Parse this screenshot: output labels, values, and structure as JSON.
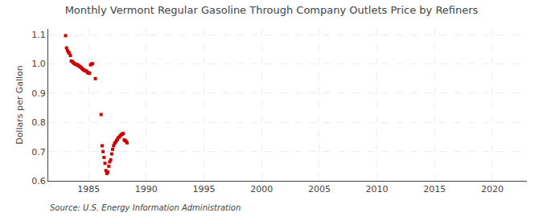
{
  "chart_data": {
    "type": "scatter",
    "title": "Monthly Vermont Regular Gasoline Through Company Outlets Price by Refiners",
    "ylabel": "Dollars per Gallon",
    "annotations": [
      "Source: U.S. Energy Information Administration"
    ],
    "color": "#cc0000",
    "marker": "square",
    "grid": true,
    "xlim": [
      1981.5,
      2023
    ],
    "ylim": [
      0.6,
      1.12
    ],
    "xticks": [
      1985,
      1990,
      1995,
      2000,
      2005,
      2010,
      2015,
      2020
    ],
    "yticks": [
      0.6,
      0.7,
      0.8,
      0.9,
      {
        "value": 1,
        "label": "1.0"
      },
      1.1
    ],
    "x": [
      1983.0,
      1983.083,
      1983.167,
      1983.25,
      1983.333,
      1983.417,
      1983.5,
      1983.583,
      1983.667,
      1983.75,
      1983.833,
      1983.917,
      1984.0,
      1984.083,
      1984.167,
      1984.25,
      1984.333,
      1984.417,
      1984.5,
      1984.583,
      1984.667,
      1984.75,
      1984.833,
      1984.917,
      1985.0,
      1985.083,
      1985.167,
      1985.25,
      1985.333,
      1985.583,
      1986.083,
      1986.167,
      1986.25,
      1986.333,
      1986.417,
      1986.5,
      1986.583,
      1986.667,
      1986.75,
      1986.833,
      1986.917,
      1987.0,
      1987.083,
      1987.167,
      1987.25,
      1987.333,
      1987.417,
      1987.5,
      1987.583,
      1987.667,
      1987.75,
      1987.833,
      1987.917,
      1988.0,
      1988.083,
      1988.167,
      1988.25,
      1988.333
    ],
    "values": [
      1.097,
      1.055,
      1.046,
      1.04,
      1.037,
      1.029,
      1.01,
      1.008,
      1.005,
      1.002,
      1.0,
      0.998,
      0.998,
      0.995,
      0.993,
      0.991,
      0.988,
      0.985,
      0.982,
      0.979,
      0.978,
      0.976,
      0.975,
      0.97,
      0.97,
      0.968,
      0.997,
      1.0,
      1.001,
      0.95,
      0.827,
      0.72,
      0.7,
      0.68,
      0.66,
      0.635,
      0.625,
      0.63,
      0.65,
      0.665,
      0.672,
      0.692,
      0.708,
      0.72,
      0.728,
      0.732,
      0.738,
      0.742,
      0.748,
      0.75,
      0.755,
      0.758,
      0.76,
      0.762,
      0.74,
      0.738,
      0.735,
      0.73
    ]
  }
}
